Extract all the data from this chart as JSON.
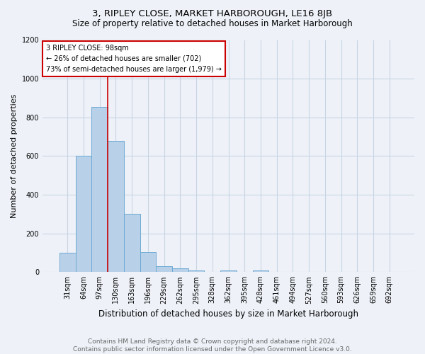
{
  "title": "3, RIPLEY CLOSE, MARKET HARBOROUGH, LE16 8JB",
  "subtitle": "Size of property relative to detached houses in Market Harborough",
  "xlabel": "Distribution of detached houses by size in Market Harborough",
  "ylabel": "Number of detached properties",
  "footnote": "Contains HM Land Registry data © Crown copyright and database right 2024.\nContains public sector information licensed under the Open Government Licence v3.0.",
  "categories": [
    "31sqm",
    "64sqm",
    "97sqm",
    "130sqm",
    "163sqm",
    "196sqm",
    "229sqm",
    "262sqm",
    "295sqm",
    "328sqm",
    "362sqm",
    "395sqm",
    "428sqm",
    "461sqm",
    "494sqm",
    "527sqm",
    "560sqm",
    "593sqm",
    "626sqm",
    "659sqm",
    "692sqm"
  ],
  "values": [
    100,
    600,
    855,
    680,
    300,
    105,
    30,
    20,
    10,
    0,
    10,
    0,
    10,
    0,
    0,
    0,
    0,
    0,
    0,
    0,
    0
  ],
  "bar_color": "#b8d0e8",
  "bar_edge_color": "#6eaad4",
  "vline_x": 2.5,
  "vline_color": "#cc0000",
  "annotation_text": "3 RIPLEY CLOSE: 98sqm\n← 26% of detached houses are smaller (702)\n73% of semi-detached houses are larger (1,979) →",
  "annotation_box_color": "#cc0000",
  "ylim": [
    0,
    1200
  ],
  "yticks": [
    0,
    200,
    400,
    600,
    800,
    1000,
    1200
  ],
  "grid_color": "#c8d4e4",
  "bg_color": "#eef2f8",
  "title_fontsize": 9.5,
  "subtitle_fontsize": 8.5,
  "axis_label_fontsize": 8,
  "tick_fontsize": 7,
  "footnote_fontsize": 6.5
}
